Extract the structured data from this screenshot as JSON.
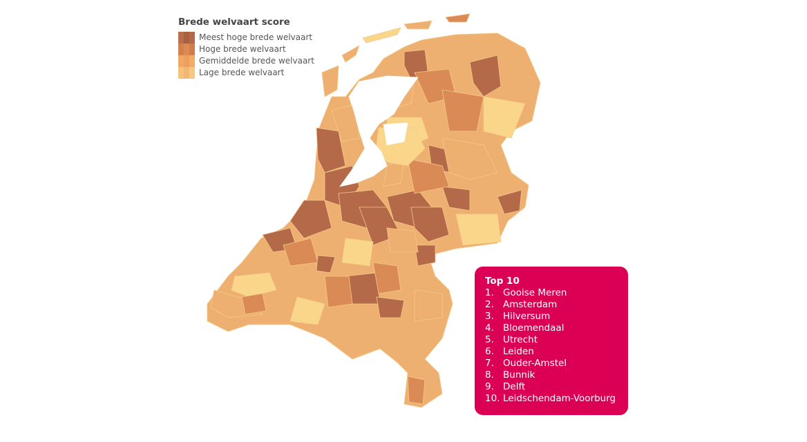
{
  "legend": {
    "title": "Brede welvaart score",
    "items": [
      {
        "label": "Meest hoge brede welvaart",
        "color": "#b46a48"
      },
      {
        "label": "Hoge brede welvaart",
        "color": "#d98a55"
      },
      {
        "label": "Gemiddelde brede welvaart",
        "color": "#eeb070"
      },
      {
        "label": "Lage brede welvaart",
        "color": "#fad68a"
      }
    ]
  },
  "top10": {
    "title": "Top 10",
    "accent": "#dc0055",
    "items": [
      {
        "rank": "1.",
        "name": "Gooise Meren"
      },
      {
        "rank": "2.",
        "name": "Amsterdam"
      },
      {
        "rank": "3.",
        "name": "Hilversum"
      },
      {
        "rank": "4.",
        "name": "Bloemendaal"
      },
      {
        "rank": "5.",
        "name": "Utrecht"
      },
      {
        "rank": "6.",
        "name": "Leiden"
      },
      {
        "rank": "7.",
        "name": "Ouder-Amstel"
      },
      {
        "rank": "8.",
        "name": "Bunnik"
      },
      {
        "rank": "9.",
        "name": "Delft"
      },
      {
        "rank": "10.",
        "name": "Leidschendam-Voorburg"
      }
    ]
  }
}
